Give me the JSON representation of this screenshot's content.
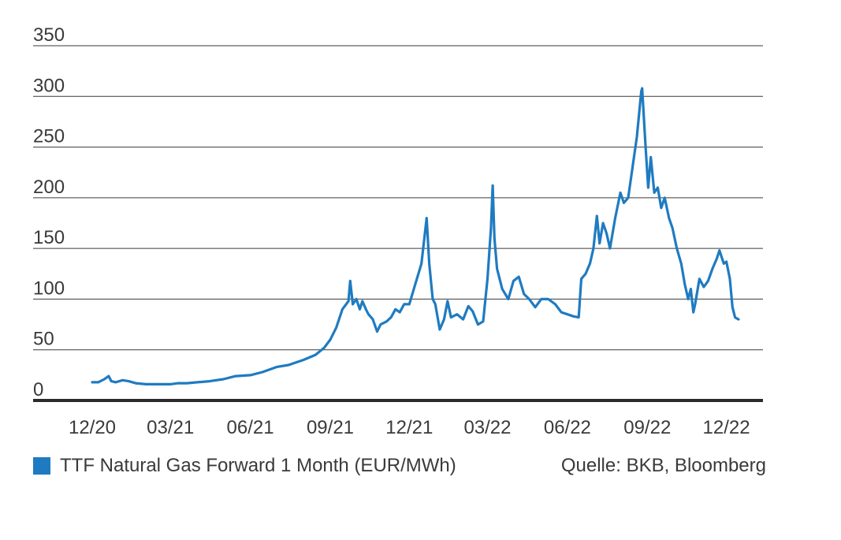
{
  "chart_data": {
    "type": "line",
    "ylim": [
      0,
      350
    ],
    "yticks": [
      0,
      50,
      100,
      150,
      200,
      250,
      300,
      350
    ],
    "xlim": [
      "2020-12-01",
      "2022-12-15"
    ],
    "xticks": [
      {
        "date": "2020-12-01",
        "label": "12/20"
      },
      {
        "date": "2021-03-01",
        "label": "03/21"
      },
      {
        "date": "2021-06-01",
        "label": "06/21"
      },
      {
        "date": "2021-09-01",
        "label": "09/21"
      },
      {
        "date": "2021-12-01",
        "label": "12/21"
      },
      {
        "date": "2022-03-01",
        "label": "03/22"
      },
      {
        "date": "2022-06-01",
        "label": "06/22"
      },
      {
        "date": "2022-09-01",
        "label": "09/22"
      },
      {
        "date": "2022-12-01",
        "label": "12/22"
      }
    ],
    "grid": true,
    "legend_position": "bottom-left",
    "source": "Quelle: BKB, Bloomberg",
    "series": [
      {
        "name": "TTF Natural Gas Forward 1 Month (EUR/MWh)",
        "color": "#1f7bc1",
        "points": [
          [
            "2020-12-01",
            18
          ],
          [
            "2020-12-08",
            18
          ],
          [
            "2020-12-15",
            21
          ],
          [
            "2020-12-20",
            24
          ],
          [
            "2020-12-23",
            19
          ],
          [
            "2020-12-28",
            18
          ],
          [
            "2021-01-05",
            20
          ],
          [
            "2021-01-12",
            19
          ],
          [
            "2021-01-20",
            17
          ],
          [
            "2021-02-01",
            16
          ],
          [
            "2021-02-15",
            16
          ],
          [
            "2021-03-01",
            16
          ],
          [
            "2021-03-10",
            17
          ],
          [
            "2021-03-20",
            17
          ],
          [
            "2021-04-01",
            18
          ],
          [
            "2021-04-15",
            19
          ],
          [
            "2021-05-01",
            21
          ],
          [
            "2021-05-15",
            24
          ],
          [
            "2021-06-01",
            25
          ],
          [
            "2021-06-15",
            28
          ],
          [
            "2021-07-01",
            33
          ],
          [
            "2021-07-15",
            35
          ],
          [
            "2021-08-01",
            40
          ],
          [
            "2021-08-15",
            45
          ],
          [
            "2021-08-25",
            52
          ],
          [
            "2021-09-01",
            60
          ],
          [
            "2021-09-08",
            72
          ],
          [
            "2021-09-15",
            90
          ],
          [
            "2021-09-22",
            98
          ],
          [
            "2021-09-24",
            118
          ],
          [
            "2021-09-27",
            95
          ],
          [
            "2021-10-01",
            100
          ],
          [
            "2021-10-05",
            90
          ],
          [
            "2021-10-08",
            98
          ],
          [
            "2021-10-12",
            90
          ],
          [
            "2021-10-15",
            85
          ],
          [
            "2021-10-20",
            80
          ],
          [
            "2021-10-25",
            68
          ],
          [
            "2021-10-29",
            75
          ],
          [
            "2021-11-05",
            78
          ],
          [
            "2021-11-10",
            82
          ],
          [
            "2021-11-15",
            90
          ],
          [
            "2021-11-20",
            87
          ],
          [
            "2021-11-25",
            95
          ],
          [
            "2021-12-01",
            95
          ],
          [
            "2021-12-08",
            115
          ],
          [
            "2021-12-15",
            135
          ],
          [
            "2021-12-21",
            180
          ],
          [
            "2021-12-24",
            135
          ],
          [
            "2021-12-28",
            100
          ],
          [
            "2021-12-31",
            95
          ],
          [
            "2022-01-05",
            70
          ],
          [
            "2022-01-10",
            80
          ],
          [
            "2022-01-14",
            98
          ],
          [
            "2022-01-18",
            82
          ],
          [
            "2022-01-25",
            85
          ],
          [
            "2022-02-01",
            80
          ],
          [
            "2022-02-07",
            93
          ],
          [
            "2022-02-12",
            88
          ],
          [
            "2022-02-18",
            75
          ],
          [
            "2022-02-24",
            78
          ],
          [
            "2022-03-01",
            120
          ],
          [
            "2022-03-05",
            170
          ],
          [
            "2022-03-07",
            212
          ],
          [
            "2022-03-09",
            160
          ],
          [
            "2022-03-12",
            130
          ],
          [
            "2022-03-18",
            110
          ],
          [
            "2022-03-25",
            100
          ],
          [
            "2022-03-31",
            118
          ],
          [
            "2022-04-06",
            122
          ],
          [
            "2022-04-12",
            105
          ],
          [
            "2022-04-18",
            100
          ],
          [
            "2022-04-25",
            92
          ],
          [
            "2022-05-02",
            100
          ],
          [
            "2022-05-10",
            100
          ],
          [
            "2022-05-18",
            95
          ],
          [
            "2022-05-25",
            87
          ],
          [
            "2022-06-01",
            85
          ],
          [
            "2022-06-08",
            83
          ],
          [
            "2022-06-14",
            82
          ],
          [
            "2022-06-17",
            120
          ],
          [
            "2022-06-22",
            125
          ],
          [
            "2022-06-27",
            135
          ],
          [
            "2022-07-01",
            150
          ],
          [
            "2022-07-05",
            182
          ],
          [
            "2022-07-08",
            155
          ],
          [
            "2022-07-12",
            175
          ],
          [
            "2022-07-16",
            165
          ],
          [
            "2022-07-20",
            150
          ],
          [
            "2022-07-26",
            180
          ],
          [
            "2022-08-01",
            205
          ],
          [
            "2022-08-05",
            195
          ],
          [
            "2022-08-10",
            200
          ],
          [
            "2022-08-15",
            230
          ],
          [
            "2022-08-20",
            260
          ],
          [
            "2022-08-25",
            305
          ],
          [
            "2022-08-26",
            308
          ],
          [
            "2022-08-30",
            250
          ],
          [
            "2022-09-02",
            210
          ],
          [
            "2022-09-05",
            240
          ],
          [
            "2022-09-09",
            205
          ],
          [
            "2022-09-13",
            210
          ],
          [
            "2022-09-17",
            190
          ],
          [
            "2022-09-21",
            200
          ],
          [
            "2022-09-26",
            180
          ],
          [
            "2022-09-30",
            170
          ],
          [
            "2022-10-05",
            150
          ],
          [
            "2022-10-10",
            135
          ],
          [
            "2022-10-14",
            115
          ],
          [
            "2022-10-18",
            100
          ],
          [
            "2022-10-21",
            110
          ],
          [
            "2022-10-24",
            87
          ],
          [
            "2022-10-26",
            95
          ],
          [
            "2022-10-31",
            120
          ],
          [
            "2022-11-05",
            112
          ],
          [
            "2022-11-10",
            118
          ],
          [
            "2022-11-15",
            130
          ],
          [
            "2022-11-20",
            140
          ],
          [
            "2022-11-23",
            148
          ],
          [
            "2022-11-28",
            135
          ],
          [
            "2022-12-01",
            137
          ],
          [
            "2022-12-05",
            120
          ],
          [
            "2022-12-08",
            92
          ],
          [
            "2022-12-11",
            82
          ],
          [
            "2022-12-15",
            80
          ]
        ]
      }
    ]
  }
}
